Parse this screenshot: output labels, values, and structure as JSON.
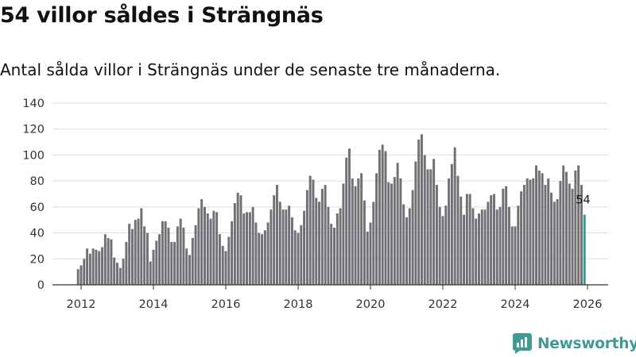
{
  "page": {
    "title": "54 villor såldes i Strängnäs",
    "subtitle": "Antal sålda villor i Strängnäs under de senaste tre månaderna."
  },
  "brand": {
    "name": "Newsworthy",
    "icon": "newsworthy-logo-icon",
    "color": "#3f9a92"
  },
  "chart_data": {
    "type": "bar",
    "title": "54 villor såldes i Strängnäs",
    "subtitle": "Antal sålda villor i Strängnäs under de senaste tre månaderna.",
    "xlabel": "",
    "ylabel": "",
    "ylim": [
      0,
      140
    ],
    "yticks": [
      "0",
      "20",
      "40",
      "60",
      "80",
      "100",
      "120",
      "140"
    ],
    "xticks": [
      "2012",
      "2014",
      "2016",
      "2018",
      "2020",
      "2022",
      "2024",
      "2026"
    ],
    "xlim": [
      2011.5,
      2026.3
    ],
    "grid": true,
    "legend": "none",
    "bar_color": "#717075",
    "highlight_color": "#2b9c8f",
    "start": [
      2011,
      12
    ],
    "period": "rolling three months, monthly",
    "values": [
      12,
      15,
      20,
      28,
      24,
      28,
      27,
      26,
      29,
      39,
      36,
      35,
      21,
      17,
      13,
      20,
      33,
      47,
      43,
      50,
      51,
      59,
      45,
      40,
      18,
      27,
      34,
      39,
      49,
      49,
      44,
      33,
      33,
      45,
      51,
      44,
      28,
      23,
      36,
      46,
      59,
      66,
      60,
      55,
      51,
      57,
      56,
      39,
      30,
      26,
      37,
      49,
      63,
      71,
      69,
      55,
      56,
      56,
      60,
      48,
      40,
      39,
      42,
      48,
      58,
      69,
      77,
      64,
      58,
      58,
      61,
      52,
      42,
      40,
      46,
      57,
      73,
      84,
      81,
      67,
      64,
      74,
      77,
      60,
      47,
      44,
      55,
      59,
      78,
      98,
      105,
      82,
      76,
      82,
      86,
      65,
      41,
      48,
      64,
      86,
      104,
      108,
      103,
      79,
      78,
      83,
      94,
      82,
      62,
      52,
      59,
      73,
      95,
      112,
      116,
      100,
      89,
      89,
      97,
      77,
      60,
      53,
      61,
      82,
      93,
      106,
      84,
      68,
      54,
      70,
      70,
      59,
      51,
      55,
      58,
      58,
      64,
      69,
      70,
      58,
      60,
      74,
      76,
      60,
      45,
      45,
      61,
      72,
      77,
      82,
      81,
      82,
      92,
      88,
      86,
      77,
      82,
      71,
      64,
      66,
      80,
      92,
      87,
      78,
      74,
      88,
      92,
      77,
      54
    ],
    "latest": {
      "label": "54",
      "value": 54
    }
  }
}
